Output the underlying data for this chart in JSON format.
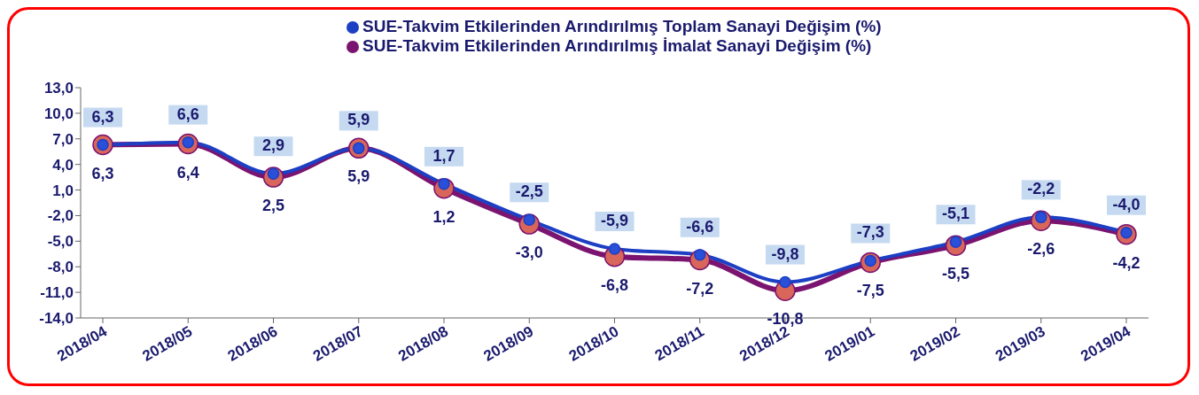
{
  "chart_data": {
    "type": "line",
    "categories": [
      "2018/04",
      "2018/05",
      "2018/06",
      "2018/07",
      "2018/08",
      "2018/09",
      "2018/10",
      "2018/11",
      "2018/12",
      "2019/01",
      "2019/02",
      "2019/03",
      "2019/04"
    ],
    "series": [
      {
        "name": "SUE-Takvim Etkilerinden Arındırılmış Toplam Sanayi Değişim (%)",
        "color": "#1c3fc4",
        "values": [
          6.3,
          6.6,
          2.9,
          5.9,
          1.7,
          -2.5,
          -5.9,
          -6.6,
          -9.8,
          -7.3,
          -5.1,
          -2.2,
          -4.0
        ],
        "value_labels": [
          "6,3",
          "6,6",
          "2,9",
          "5,9",
          "1,7",
          "-2,5",
          "-5,9",
          "-6,6",
          "-9,8",
          "-7,3",
          "-5,1",
          "-2,2",
          "-4,0"
        ]
      },
      {
        "name": "SUE-Takvim Etkilerinden Arındırılmış İmalat Sanayi Değişim (%)",
        "color": "#7a1470",
        "values": [
          6.3,
          6.4,
          2.5,
          5.9,
          1.2,
          -3.0,
          -6.8,
          -7.2,
          -10.8,
          -7.5,
          -5.5,
          -2.6,
          -4.2
        ],
        "value_labels": [
          "6,3",
          "6,4",
          "2,5",
          "5,9",
          "1,2",
          "-3,0",
          "-6,8",
          "-7,2",
          "-10,8",
          "-7,5",
          "-5,5",
          "-2,6",
          "-4,2"
        ]
      }
    ],
    "ylim": [
      -14,
      13
    ],
    "yticks": [
      {
        "value": 13,
        "label": "13,0"
      },
      {
        "value": 10,
        "label": "10,0"
      },
      {
        "value": 7,
        "label": "7,0"
      },
      {
        "value": 4,
        "label": "4,0"
      },
      {
        "value": 1,
        "label": "1,0"
      },
      {
        "value": -2,
        "label": "-2,0"
      },
      {
        "value": -5,
        "label": "-5,0"
      },
      {
        "value": -8,
        "label": "-8,0"
      },
      {
        "value": -11,
        "label": "-11,0"
      },
      {
        "value": -14,
        "label": "-14,0"
      }
    ],
    "legend": "top right",
    "grid": false,
    "marker": "circle",
    "line_style": "solid"
  }
}
